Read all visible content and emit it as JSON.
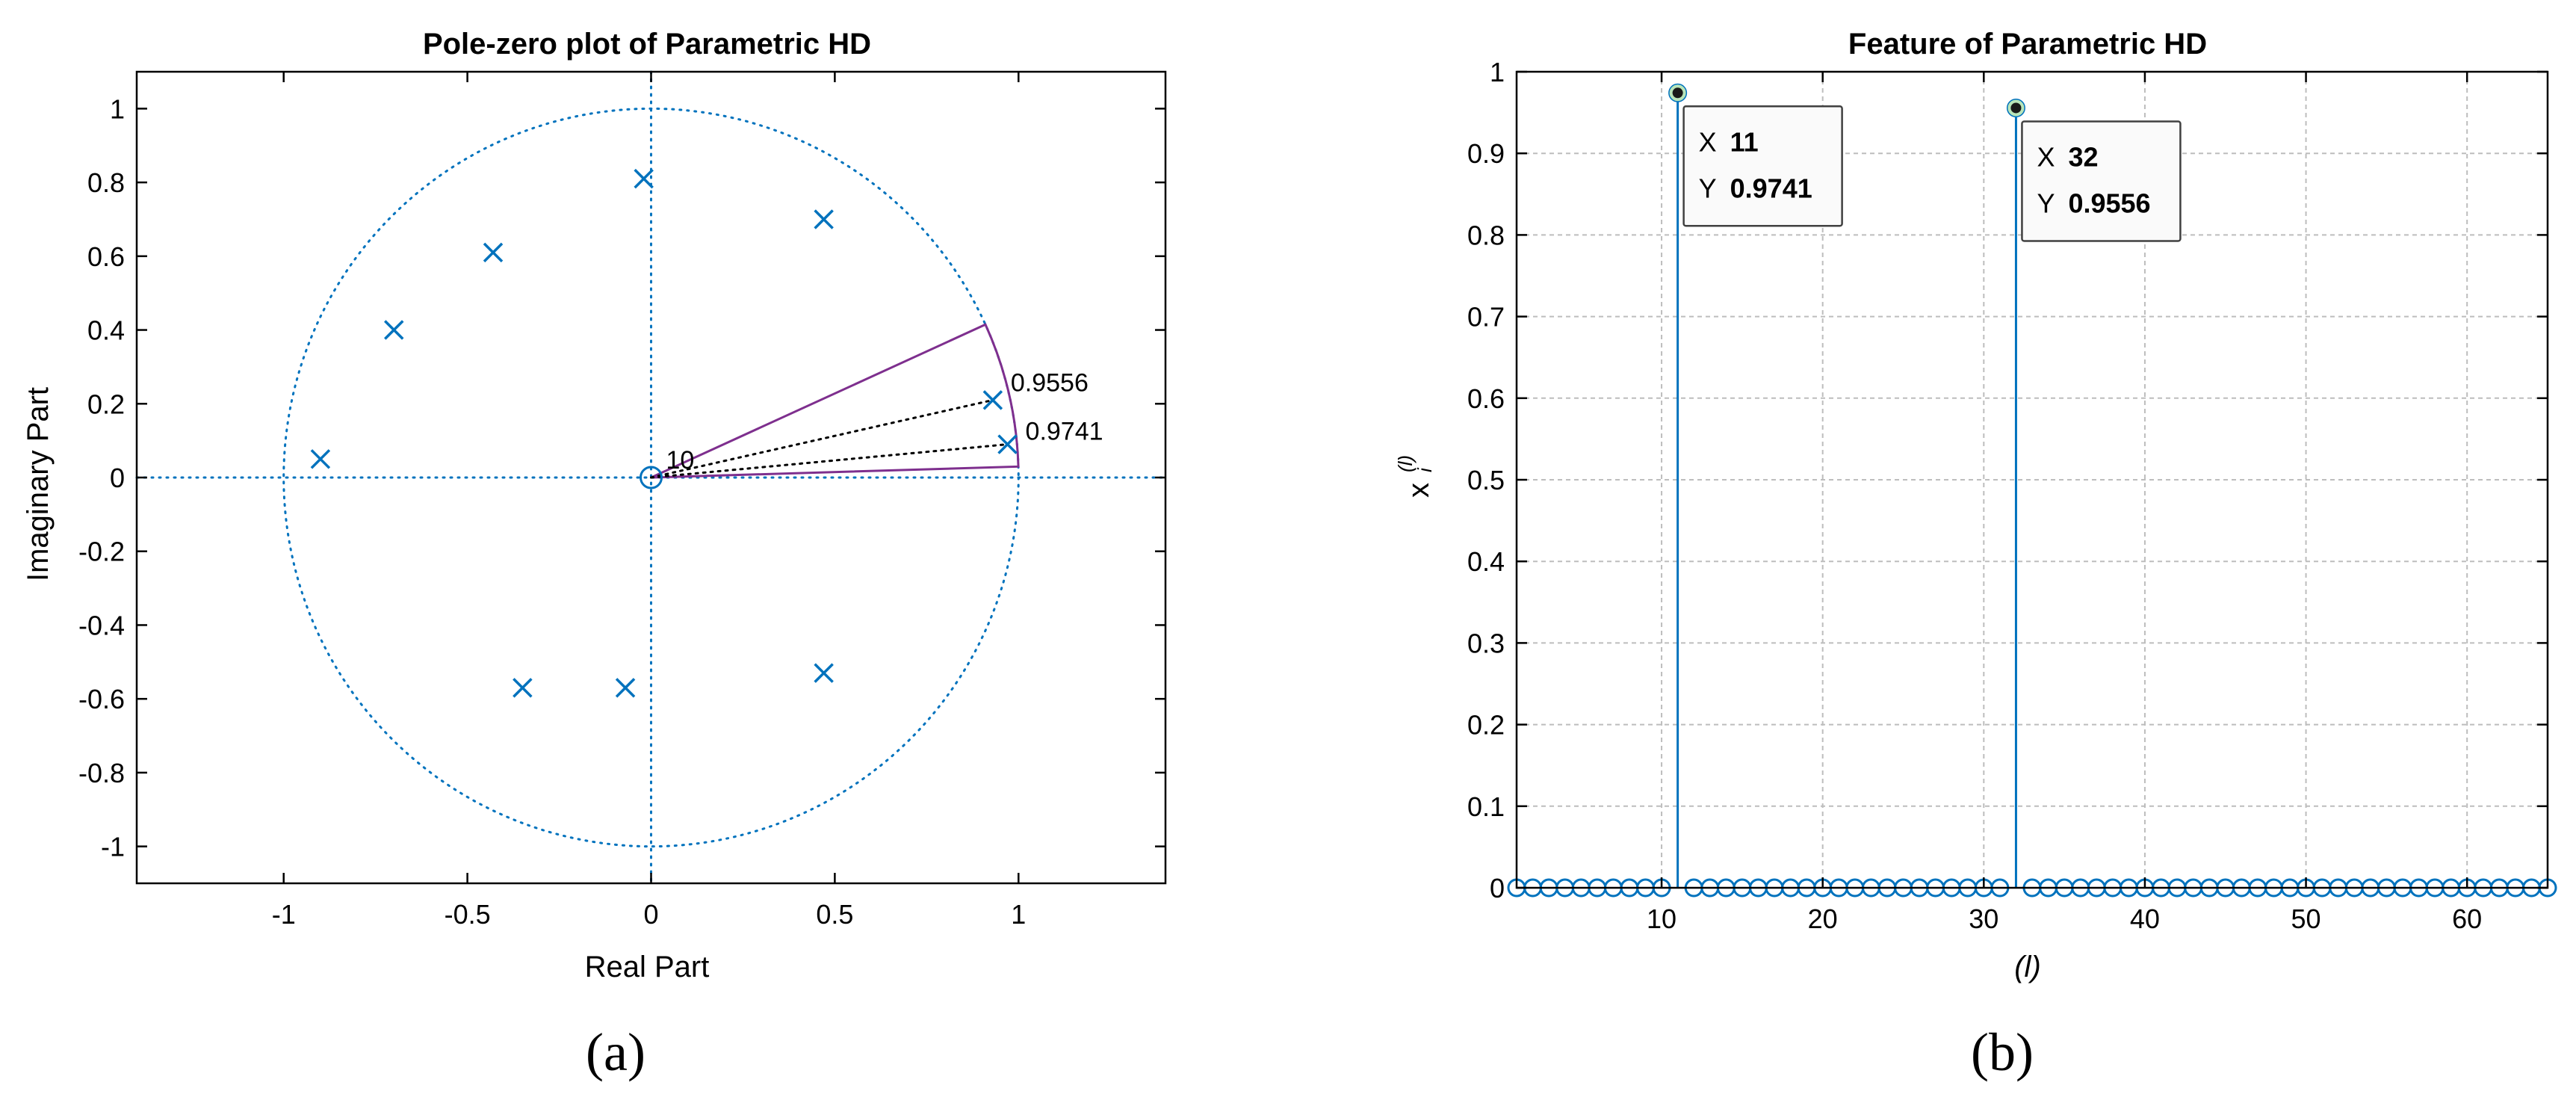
{
  "chart_data": [
    {
      "type": "scatter",
      "title": "Pole-zero plot of Parametric HD",
      "xlabel": "Real Part",
      "ylabel": "Imaginary Part",
      "panel_label": "(a)",
      "xlim": [
        -1.4,
        1.4
      ],
      "ylim": [
        -1.1,
        1.1
      ],
      "xticks": [
        -1,
        -0.5,
        0,
        0.5,
        1
      ],
      "yticks": [
        -1,
        -0.8,
        -0.6,
        -0.4,
        -0.2,
        0,
        0.2,
        0.4,
        0.6,
        0.8,
        1
      ],
      "xtick_labels": [
        "-1",
        "-0.5",
        "0",
        "0.5",
        "1"
      ],
      "ytick_labels": [
        "-1",
        "-0.8",
        "-0.6",
        "-0.4",
        "-0.2",
        "0",
        "0.2",
        "0.4",
        "0.6",
        "0.8",
        "1"
      ],
      "grid": false,
      "unit_circle": true,
      "zeros": [
        {
          "x": 0,
          "y": 0
        }
      ],
      "zero_multiplicity_label": "10",
      "poles": [
        {
          "x": -0.02,
          "y": 0.81
        },
        {
          "x": 0.47,
          "y": 0.7
        },
        {
          "x": -0.43,
          "y": 0.61
        },
        {
          "x": -0.7,
          "y": 0.4
        },
        {
          "x": 0.93,
          "y": 0.21
        },
        {
          "x": 0.97,
          "y": 0.09
        },
        {
          "x": -0.9,
          "y": 0.05
        },
        {
          "x": -0.35,
          "y": -0.57
        },
        {
          "x": -0.07,
          "y": -0.57
        },
        {
          "x": 0.47,
          "y": -0.53
        }
      ],
      "wedge_angles_deg": [
        1.7,
        24.5
      ],
      "annotated_radii": [
        {
          "label": "0.9556",
          "x": 0.93,
          "y": 0.21
        },
        {
          "label": "0.9741",
          "x": 0.97,
          "y": 0.09
        }
      ]
    },
    {
      "type": "stem",
      "title": "Feature of Parametric HD",
      "xlabel": "(l)",
      "ylabel": "x_i^(l)",
      "ylabel_base": "x",
      "ylabel_sub": "i",
      "ylabel_sup": "(l)",
      "panel_label": "(b)",
      "xlim": [
        1,
        65
      ],
      "ylim": [
        0,
        1
      ],
      "xticks": [
        10,
        20,
        30,
        40,
        50,
        60
      ],
      "yticks": [
        0,
        0.1,
        0.2,
        0.3,
        0.4,
        0.5,
        0.6,
        0.7,
        0.8,
        0.9,
        1
      ],
      "xtick_labels": [
        "10",
        "20",
        "30",
        "40",
        "50",
        "60"
      ],
      "ytick_labels": [
        "0",
        "0.1",
        "0.2",
        "0.3",
        "0.4",
        "0.5",
        "0.6",
        "0.7",
        "0.8",
        "0.9",
        "1"
      ],
      "grid": true,
      "x": [
        1,
        2,
        3,
        4,
        5,
        6,
        7,
        8,
        9,
        10,
        11,
        12,
        13,
        14,
        15,
        16,
        17,
        18,
        19,
        20,
        21,
        22,
        23,
        24,
        25,
        26,
        27,
        28,
        29,
        30,
        31,
        32,
        33,
        34,
        35,
        36,
        37,
        38,
        39,
        40,
        41,
        42,
        43,
        44,
        45,
        46,
        47,
        48,
        49,
        50,
        51,
        52,
        53,
        54,
        55,
        56,
        57,
        58,
        59,
        60,
        61,
        62,
        63,
        64,
        65
      ],
      "values": [
        0,
        0,
        0,
        0,
        0,
        0,
        0,
        0,
        0,
        0,
        0.9741,
        0,
        0,
        0,
        0,
        0,
        0,
        0,
        0,
        0,
        0,
        0,
        0,
        0,
        0,
        0,
        0,
        0,
        0,
        0,
        0,
        0.9556,
        0,
        0,
        0,
        0,
        0,
        0,
        0,
        0,
        0,
        0,
        0,
        0,
        0,
        0,
        0,
        0,
        0,
        0,
        0,
        0,
        0,
        0,
        0,
        0,
        0,
        0,
        0,
        0,
        0,
        0,
        0,
        0,
        0
      ],
      "datatips": [
        {
          "x": 11,
          "y": 0.9741,
          "x_label": "X",
          "x_text": "11",
          "y_label": "Y",
          "y_text": "0.9741"
        },
        {
          "x": 32,
          "y": 0.9556,
          "x_label": "X",
          "x_text": "32",
          "y_label": "Y",
          "y_text": "0.9556"
        }
      ]
    }
  ],
  "colors": {
    "series": "#0072BD",
    "wedge": "#7E2F8E",
    "axis": "#000000",
    "grid": "#bdbdbd",
    "tip_border": "#404040"
  }
}
